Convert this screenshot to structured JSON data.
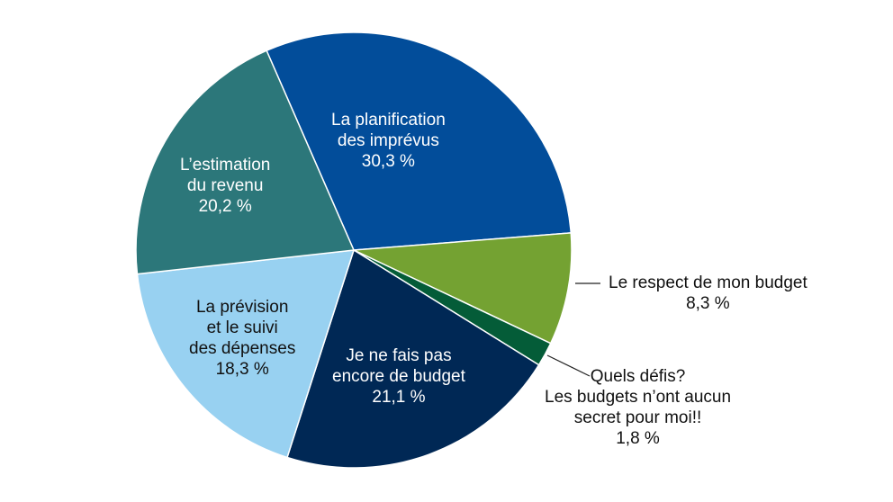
{
  "chart_data": {
    "type": "pie",
    "title": "",
    "start_angle_deg": 336.4,
    "direction": "clockwise",
    "slices": [
      {
        "label": "La planification des imprévus",
        "value": 30.3,
        "value_label": "30,3 %",
        "color": "#024D9A",
        "label_lines": [
          "La planification",
          "des imprévus",
          "30,3 %"
        ],
        "label_inside": true
      },
      {
        "label": "Le respect de mon budget",
        "value": 8.3,
        "value_label": "8,3 %",
        "color": "#74A232",
        "label_lines": [
          "Le respect de mon budget",
          "8,3 %"
        ],
        "label_inside": false
      },
      {
        "label": "Quels défis? Les budgets n’ont aucun secret pour moi!!",
        "value": 1.8,
        "value_label": "1,8 %",
        "color": "#045C38",
        "label_lines": [
          "Quels défis?",
          "Les budgets n’ont aucun",
          "secret pour moi!!",
          "1,8 %"
        ],
        "label_inside": false
      },
      {
        "label": "Je ne fais pas encore de budget",
        "value": 21.1,
        "value_label": "21,1 %",
        "color": "#002855",
        "label_lines": [
          "Je ne fais pas",
          "encore de budget",
          "21,1 %"
        ],
        "label_inside": true
      },
      {
        "label": "La prévision et le suivi des dépenses",
        "value": 18.3,
        "value_label": "18,3 %",
        "color": "#98D1F1",
        "label_lines": [
          "La prévision",
          "et le suivi",
          "des dépenses",
          "18,3 %"
        ],
        "label_inside": true
      },
      {
        "label": "L’estimation du revenu",
        "value": 20.2,
        "value_label": "20,2 %",
        "color": "#2C777A",
        "label_lines": [
          "L’estimation",
          "du revenu",
          "20,2 %"
        ],
        "label_inside": true
      }
    ],
    "legend": "none",
    "grid": false
  }
}
